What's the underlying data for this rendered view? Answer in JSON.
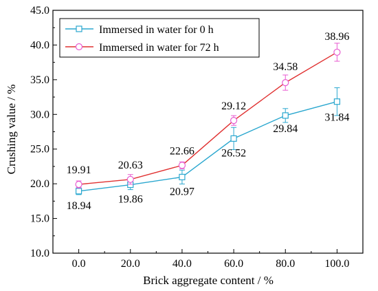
{
  "chart_data": {
    "type": "line",
    "xlabel": "Brick aggregate content / %",
    "ylabel": "Crushing value / %",
    "x": [
      0,
      20,
      40,
      60,
      80,
      100
    ],
    "x_tick_labels": [
      "0.0",
      "20.0",
      "40.0",
      "60.0",
      "80.0",
      "100.0"
    ],
    "xlim": [
      -10,
      110
    ],
    "ylim": [
      10,
      45
    ],
    "y_ticks": [
      10,
      15,
      20,
      25,
      30,
      35,
      40,
      45
    ],
    "y_tick_labels": [
      "10.0",
      "15.0",
      "20.0",
      "25.0",
      "30.0",
      "35.0",
      "40.0",
      "45.0"
    ],
    "legend_position": "top-left",
    "grid": false,
    "series": [
      {
        "name": "Immersed in water for 0 h",
        "marker": "square",
        "color": "#2aa7cf",
        "line_color": "#2aa7cf",
        "values": [
          18.94,
          19.86,
          20.97,
          26.52,
          29.84,
          31.84
        ],
        "labels": [
          "18.94",
          "19.86",
          "20.97",
          "26.52",
          "29.84",
          "31.84"
        ],
        "error": [
          0.5,
          0.7,
          1.0,
          1.6,
          1.0,
          2.0
        ]
      },
      {
        "name": "Immersed in water for 72 h",
        "marker": "circle",
        "color": "#e85ad0",
        "line_color": "#e03030",
        "values": [
          19.91,
          20.63,
          22.66,
          29.12,
          34.58,
          38.96
        ],
        "labels": [
          "19.91",
          "20.63",
          "22.66",
          "29.12",
          "34.58",
          "38.96"
        ],
        "error": [
          0.5,
          0.7,
          0.5,
          0.7,
          1.1,
          1.3
        ]
      }
    ]
  }
}
